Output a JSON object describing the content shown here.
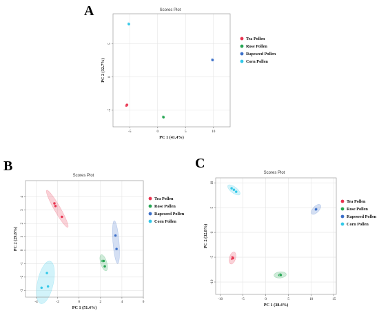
{
  "colors": {
    "tea": "#e8334f",
    "rose": "#26a653",
    "rapeseed": "#3b6fc9",
    "corn": "#33c8e8"
  },
  "chart_data": [
    {
      "panel": "A",
      "type": "scatter",
      "title": "Scores Plot",
      "xlabel": "PC 1 (41.4%)",
      "ylabel": "PC 2 (32.7%)",
      "xlim": [
        -8,
        13
      ],
      "ylim": [
        -7.5,
        9.5
      ],
      "xticks": [
        -5,
        0,
        5,
        10
      ],
      "yticks": [
        -5,
        0,
        5
      ],
      "xtick_labels": [
        "-5",
        "0",
        "5",
        "10"
      ],
      "ytick_labels": [
        "-5",
        "0",
        "5"
      ],
      "ellipses": false,
      "series": [
        {
          "name": "Tea Pollen",
          "color_key": "tea",
          "points": [
            [
              -5.6,
              -4.3
            ],
            [
              -5.5,
              -4.2
            ]
          ]
        },
        {
          "name": "Rose Pollen",
          "color_key": "rose",
          "points": [
            [
              1.0,
              -6.0
            ],
            [
              1.05,
              -6.05
            ]
          ]
        },
        {
          "name": "Rapeseed Pollen",
          "color_key": "rapeseed",
          "points": [
            [
              9.8,
              2.6
            ],
            [
              9.85,
              2.55
            ]
          ]
        },
        {
          "name": "Corn Pollen",
          "color_key": "corn",
          "points": [
            [
              -5.2,
              8.0
            ],
            [
              -5.15,
              7.95
            ]
          ]
        }
      ]
    },
    {
      "panel": "B",
      "type": "scatter",
      "title": "Scores Plot",
      "xlabel": "PC 1 (51.4%)",
      "ylabel": "PC 2 (29.8%)",
      "xlim": [
        -5,
        6
      ],
      "ylim": [
        -3.5,
        5.2
      ],
      "xticks": [
        -4,
        -2,
        0,
        2,
        4,
        6
      ],
      "yticks": [
        -3,
        -2,
        -1,
        0,
        1,
        2,
        3,
        4
      ],
      "xtick_labels": [
        "-4",
        "-2",
        "0",
        "2",
        "4",
        "6"
      ],
      "ytick_labels": [
        "-3",
        "-2",
        "-1",
        "0",
        "1",
        "2",
        "3",
        "4"
      ],
      "ellipses": true,
      "series": [
        {
          "name": "Tea Pollen",
          "color_key": "tea",
          "points": [
            [
              -2.3,
              3.5
            ],
            [
              -2.2,
              3.3
            ],
            [
              -1.6,
              2.5
            ]
          ]
        },
        {
          "name": "Rose Pollen",
          "color_key": "rose",
          "points": [
            [
              2.2,
              -0.8
            ],
            [
              2.3,
              -0.8
            ],
            [
              2.4,
              -1.2
            ]
          ]
        },
        {
          "name": "Rapeseed Pollen",
          "color_key": "rapeseed",
          "points": [
            [
              3.4,
              1.1
            ],
            [
              3.5,
              0.1
            ]
          ]
        },
        {
          "name": "Corn Pollen",
          "color_key": "corn",
          "points": [
            [
              -3.5,
              -2.8
            ],
            [
              -3.0,
              -1.7
            ],
            [
              -2.9,
              -2.7
            ]
          ]
        }
      ]
    },
    {
      "panel": "C",
      "type": "scatter",
      "title": "Scores Plot",
      "xlabel": "PC 1 (38.4%)",
      "ylabel": "PC 2 (32.8%)",
      "xlim": [
        -11,
        15.5
      ],
      "ylim": [
        -12.5,
        11
      ],
      "xticks": [
        -10,
        -5,
        0,
        5,
        10,
        15
      ],
      "yticks": [
        -10,
        -5,
        0,
        5,
        10
      ],
      "xtick_labels": [
        "-10",
        "-5",
        "0",
        "5",
        "10",
        "15"
      ],
      "ytick_labels": [
        "-10",
        "-5",
        "0",
        "5",
        "10"
      ],
      "ellipses": true,
      "series": [
        {
          "name": "Tea Pollen",
          "color_key": "tea",
          "points": [
            [
              -7.4,
              -5.3
            ],
            [
              -7.3,
              -5.0
            ],
            [
              -7.2,
              -5.2
            ]
          ]
        },
        {
          "name": "Rose Pollen",
          "color_key": "rose",
          "points": [
            [
              3.0,
              -8.6
            ],
            [
              3.2,
              -8.5
            ],
            [
              3.3,
              -8.6
            ]
          ]
        },
        {
          "name": "Rapeseed Pollen",
          "color_key": "rapeseed",
          "points": [
            [
              11.0,
              4.6
            ],
            [
              11.1,
              4.7
            ],
            [
              11.05,
              4.65
            ]
          ]
        },
        {
          "name": "Corn Pollen",
          "color_key": "corn",
          "points": [
            [
              -7.5,
              8.9
            ],
            [
              -6.5,
              8.2
            ],
            [
              -7.0,
              8.6
            ]
          ]
        }
      ]
    }
  ]
}
